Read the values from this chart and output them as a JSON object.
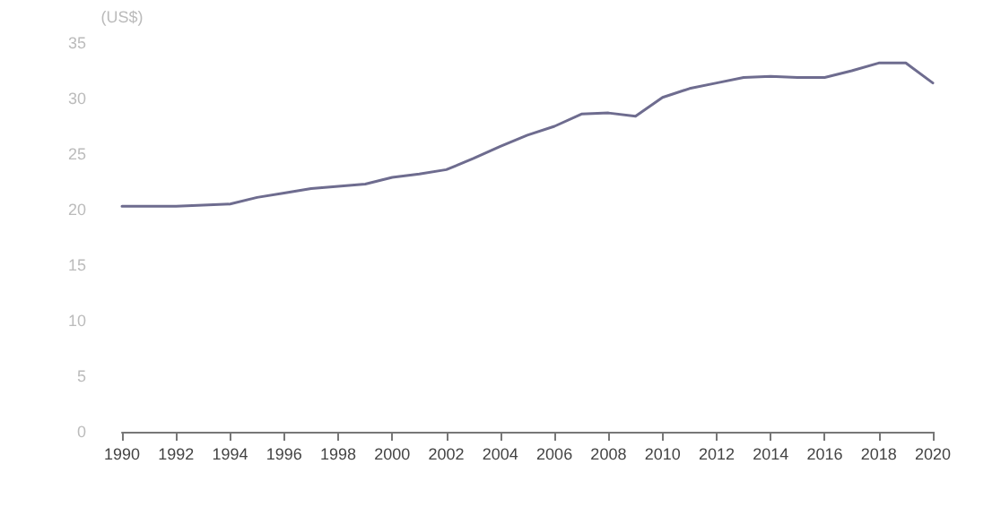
{
  "chart_data": {
    "type": "line",
    "ylabel": "(US$)",
    "x": [
      1990,
      1991,
      1992,
      1993,
      1994,
      1995,
      1996,
      1997,
      1998,
      1999,
      2000,
      2001,
      2002,
      2003,
      2004,
      2005,
      2006,
      2007,
      2008,
      2009,
      2010,
      2011,
      2012,
      2013,
      2014,
      2015,
      2016,
      2017,
      2018,
      2019,
      2020
    ],
    "series": [
      {
        "color": "#6e6c8f",
        "values": [
          20.3,
          20.3,
          20.3,
          20.4,
          20.5,
          21.1,
          21.5,
          21.9,
          22.1,
          22.3,
          22.9,
          23.2,
          23.6,
          24.6,
          25.7,
          26.7,
          27.5,
          28.6,
          28.7,
          28.4,
          30.1,
          30.9,
          31.4,
          31.9,
          32.0,
          31.9,
          31.9,
          32.5,
          33.2,
          33.2,
          31.4
        ]
      }
    ],
    "xlim": [
      1990,
      2020
    ],
    "xticks": [
      1990,
      1992,
      1994,
      1996,
      1998,
      2000,
      2002,
      2004,
      2006,
      2008,
      2010,
      2012,
      2014,
      2016,
      2018,
      2020
    ],
    "ylim": [
      0,
      35
    ],
    "yticks": [
      0,
      5,
      10,
      15,
      20,
      25,
      30,
      35
    ],
    "grid": false,
    "marker": "none",
    "line_style": "solid"
  }
}
